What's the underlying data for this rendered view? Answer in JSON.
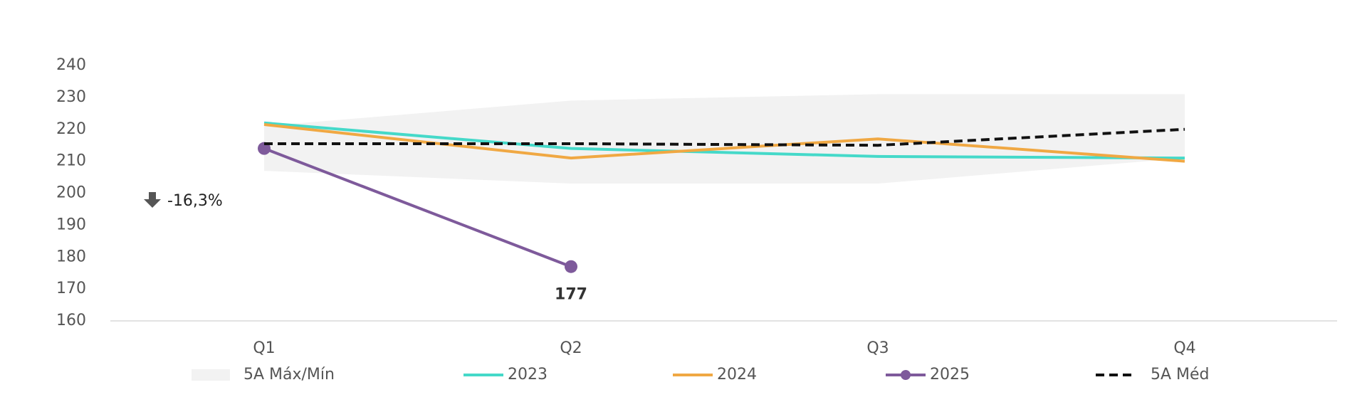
{
  "chart_data": {
    "type": "line",
    "categories": [
      "Q1",
      "Q2",
      "Q3",
      "Q4"
    ],
    "ylim": [
      160,
      240
    ],
    "yticks": [
      160,
      170,
      180,
      190,
      200,
      210,
      220,
      230,
      240
    ],
    "grid": false,
    "legend": "bottom",
    "band": {
      "name": "5A Máx/Mín",
      "color": "#f2f2f2",
      "max": [
        221,
        229,
        231,
        231
      ],
      "min": [
        207,
        203,
        203,
        211
      ]
    },
    "series": [
      {
        "name": "2023",
        "color": "#45d9c9",
        "values": [
          222,
          214,
          211.5,
          211
        ],
        "dash": false,
        "markers": false
      },
      {
        "name": "2024",
        "color": "#f0a843",
        "values": [
          221.5,
          211,
          217,
          210
        ],
        "dash": false,
        "markers": false
      },
      {
        "name": "2025",
        "color": "#7e5a9b",
        "values": [
          214,
          177,
          null,
          null
        ],
        "value_labels": [
          null,
          "177"
        ],
        "dash": false,
        "markers": true
      },
      {
        "name": "5A Méd",
        "color": "#111111",
        "values": [
          215.5,
          215.5,
          215,
          220
        ],
        "dash": true,
        "markers": false
      }
    ],
    "annotation": "-16,3%"
  }
}
